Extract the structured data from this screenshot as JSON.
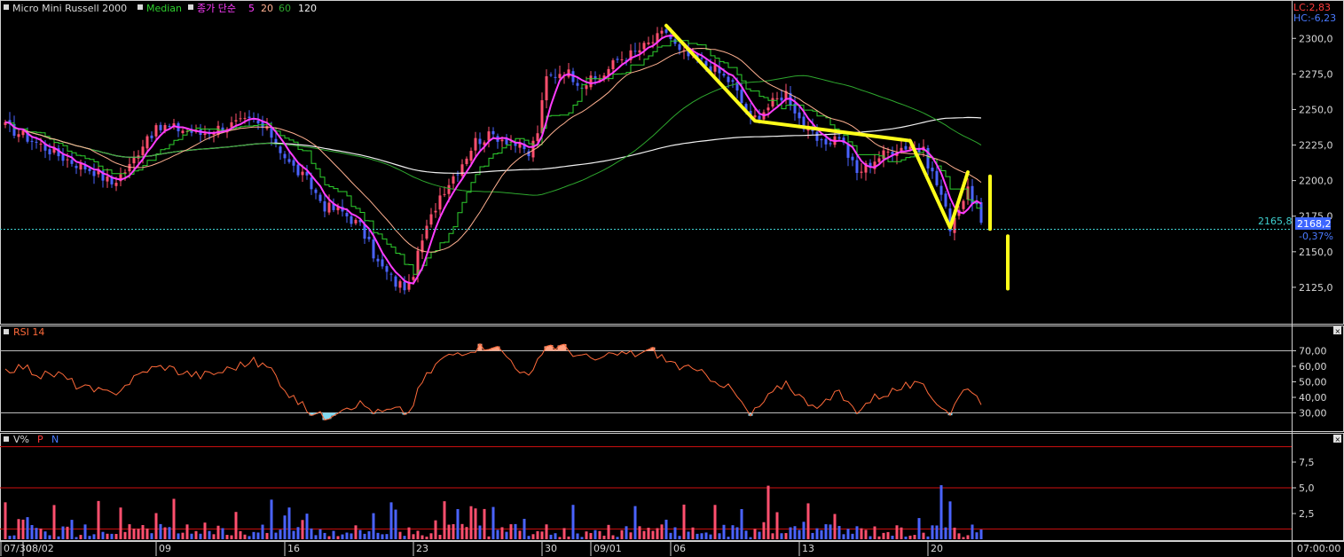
{
  "colors": {
    "background": "#000000",
    "up": "#ff4f6e",
    "down": "#4a63ff",
    "ma5": "#ff3cff",
    "ma20": "#ffb090",
    "ma60": "#2ea82e",
    "ma120": "#f0f0f0",
    "median": "#2ed02e",
    "rsi_line": "#ff6a3a",
    "rsi_overbought_fill": "#ffa080",
    "rsi_oversold_fill": "#80d8f0",
    "annotation": "#ffff1a",
    "current_line": "#3fd0d0",
    "vol_limit": "#d01010",
    "label_blue": "#4a7aff",
    "label_red": "#ff3b3b"
  },
  "header": {
    "symbol": "Micro Mini Russell 2000",
    "median_label": "Median",
    "ma_label": "종가 단순",
    "ma_periods": [
      "5",
      "20",
      "60",
      "120"
    ]
  },
  "stats": {
    "lc": "LC:2,83",
    "hc": "HC:-6,23"
  },
  "current": {
    "price_label": "2165,8",
    "last_label": "2168,2",
    "change_label": "-0,37%"
  },
  "rsi_panel": {
    "title": "RSI 14"
  },
  "volume_panel": {
    "title": "V%",
    "p_label": "P",
    "n_label": "N"
  },
  "time_label": "07:00:00",
  "chart_data": [
    {
      "type": "candlestick",
      "title": "Micro Mini Russell 2000",
      "ylim": [
        2105,
        2317
      ],
      "yticks": [
        "2300,0",
        "2275,0",
        "2250,0",
        "2225,0",
        "2200,0",
        "2175,0",
        "2150,0",
        "2125,0"
      ],
      "ytick_values": [
        2300,
        2275,
        2250,
        2225,
        2200,
        2175,
        2150,
        2125
      ],
      "xtick_labels": [
        "07/30",
        "08/02",
        "09",
        "16",
        "23",
        "30",
        "09/01",
        "06",
        "13",
        "20"
      ],
      "xtick_index": [
        0,
        5,
        35,
        64,
        93,
        122,
        133,
        151,
        180,
        209
      ],
      "current_price": 2165.8,
      "anchors": [
        [
          0,
          2238
        ],
        [
          4,
          2232
        ],
        [
          8,
          2225
        ],
        [
          12,
          2218
        ],
        [
          16,
          2212
        ],
        [
          20,
          2207
        ],
        [
          24,
          2198
        ],
        [
          28,
          2210
        ],
        [
          32,
          2232
        ],
        [
          36,
          2238
        ],
        [
          40,
          2236
        ],
        [
          44,
          2233
        ],
        [
          48,
          2237
        ],
        [
          52,
          2240
        ],
        [
          56,
          2242
        ],
        [
          60,
          2232
        ],
        [
          64,
          2212
        ],
        [
          68,
          2200
        ],
        [
          72,
          2182
        ],
        [
          76,
          2178
        ],
        [
          80,
          2168
        ],
        [
          84,
          2142
        ],
        [
          88,
          2128
        ],
        [
          91,
          2125
        ],
        [
          94,
          2158
        ],
        [
          98,
          2190
        ],
        [
          102,
          2208
        ],
        [
          106,
          2228
        ],
        [
          110,
          2232
        ],
        [
          114,
          2228
        ],
        [
          118,
          2218
        ],
        [
          120,
          2235
        ],
        [
          122,
          2272
        ],
        [
          126,
          2278
        ],
        [
          130,
          2268
        ],
        [
          134,
          2272
        ],
        [
          138,
          2285
        ],
        [
          142,
          2290
        ],
        [
          146,
          2298
        ],
        [
          149,
          2305
        ],
        [
          152,
          2290
        ],
        [
          156,
          2285
        ],
        [
          160,
          2278
        ],
        [
          164,
          2268
        ],
        [
          168,
          2242
        ],
        [
          172,
          2252
        ],
        [
          176,
          2262
        ],
        [
          180,
          2238
        ],
        [
          184,
          2225
        ],
        [
          188,
          2232
        ],
        [
          190,
          2218
        ],
        [
          192,
          2205
        ],
        [
          196,
          2215
        ],
        [
          200,
          2222
        ],
        [
          204,
          2225
        ],
        [
          207,
          2220
        ],
        [
          209,
          2205
        ],
        [
          211,
          2190
        ],
        [
          213,
          2168
        ],
        [
          215,
          2182
        ],
        [
          217,
          2192
        ],
        [
          219,
          2182
        ],
        [
          220,
          2168
        ]
      ],
      "annotation_lines": [
        [
          [
            149,
            2309
          ],
          [
            169,
            2242
          ],
          [
            204,
            2228
          ],
          [
            213,
            2167
          ],
          [
            217,
            2206
          ]
        ],
        [
          [
            222,
            2203
          ],
          [
            222,
            2166
          ]
        ],
        [
          [
            226,
            2161
          ],
          [
            226,
            2124
          ]
        ]
      ]
    },
    {
      "type": "line",
      "title": "RSI 14",
      "ylim": [
        20,
        80
      ],
      "yticks": [
        "70,00",
        "60,00",
        "50,00",
        "40,00",
        "30,00"
      ],
      "ytick_values": [
        70,
        60,
        50,
        40,
        30
      ],
      "levels": [
        30,
        70
      ],
      "anchors": [
        [
          0,
          58
        ],
        [
          4,
          60
        ],
        [
          8,
          54
        ],
        [
          12,
          55
        ],
        [
          16,
          48
        ],
        [
          20,
          44
        ],
        [
          24,
          42
        ],
        [
          28,
          50
        ],
        [
          32,
          58
        ],
        [
          36,
          60
        ],
        [
          40,
          56
        ],
        [
          44,
          54
        ],
        [
          48,
          56
        ],
        [
          52,
          60
        ],
        [
          56,
          63
        ],
        [
          60,
          58
        ],
        [
          64,
          42
        ],
        [
          68,
          32
        ],
        [
          72,
          27
        ],
        [
          76,
          34
        ],
        [
          80,
          36
        ],
        [
          84,
          30
        ],
        [
          88,
          32
        ],
        [
          91,
          30
        ],
        [
          94,
          50
        ],
        [
          98,
          64
        ],
        [
          102,
          69
        ],
        [
          106,
          72
        ],
        [
          110,
          74
        ],
        [
          114,
          64
        ],
        [
          118,
          52
        ],
        [
          120,
          62
        ],
        [
          122,
          74
        ],
        [
          126,
          72
        ],
        [
          130,
          66
        ],
        [
          134,
          64
        ],
        [
          138,
          68
        ],
        [
          142,
          68
        ],
        [
          146,
          70
        ],
        [
          149,
          64
        ],
        [
          152,
          60
        ],
        [
          156,
          56
        ],
        [
          160,
          52
        ],
        [
          164,
          44
        ],
        [
          168,
          28
        ],
        [
          172,
          40
        ],
        [
          176,
          50
        ],
        [
          180,
          38
        ],
        [
          184,
          35
        ],
        [
          188,
          43
        ],
        [
          190,
          36
        ],
        [
          192,
          32
        ],
        [
          196,
          40
        ],
        [
          200,
          44
        ],
        [
          204,
          48
        ],
        [
          207,
          46
        ],
        [
          209,
          40
        ],
        [
          211,
          35
        ],
        [
          213,
          30
        ],
        [
          215,
          40
        ],
        [
          217,
          48
        ],
        [
          219,
          40
        ],
        [
          220,
          38
        ]
      ]
    },
    {
      "type": "bar",
      "title": "V%",
      "ylim": [
        0,
        10
      ],
      "yticks": [
        "7,5",
        "5,0",
        "2,5"
      ],
      "ytick_values": [
        7.5,
        5.0,
        2.5
      ],
      "limit_lines": [
        9,
        5,
        1
      ]
    }
  ]
}
